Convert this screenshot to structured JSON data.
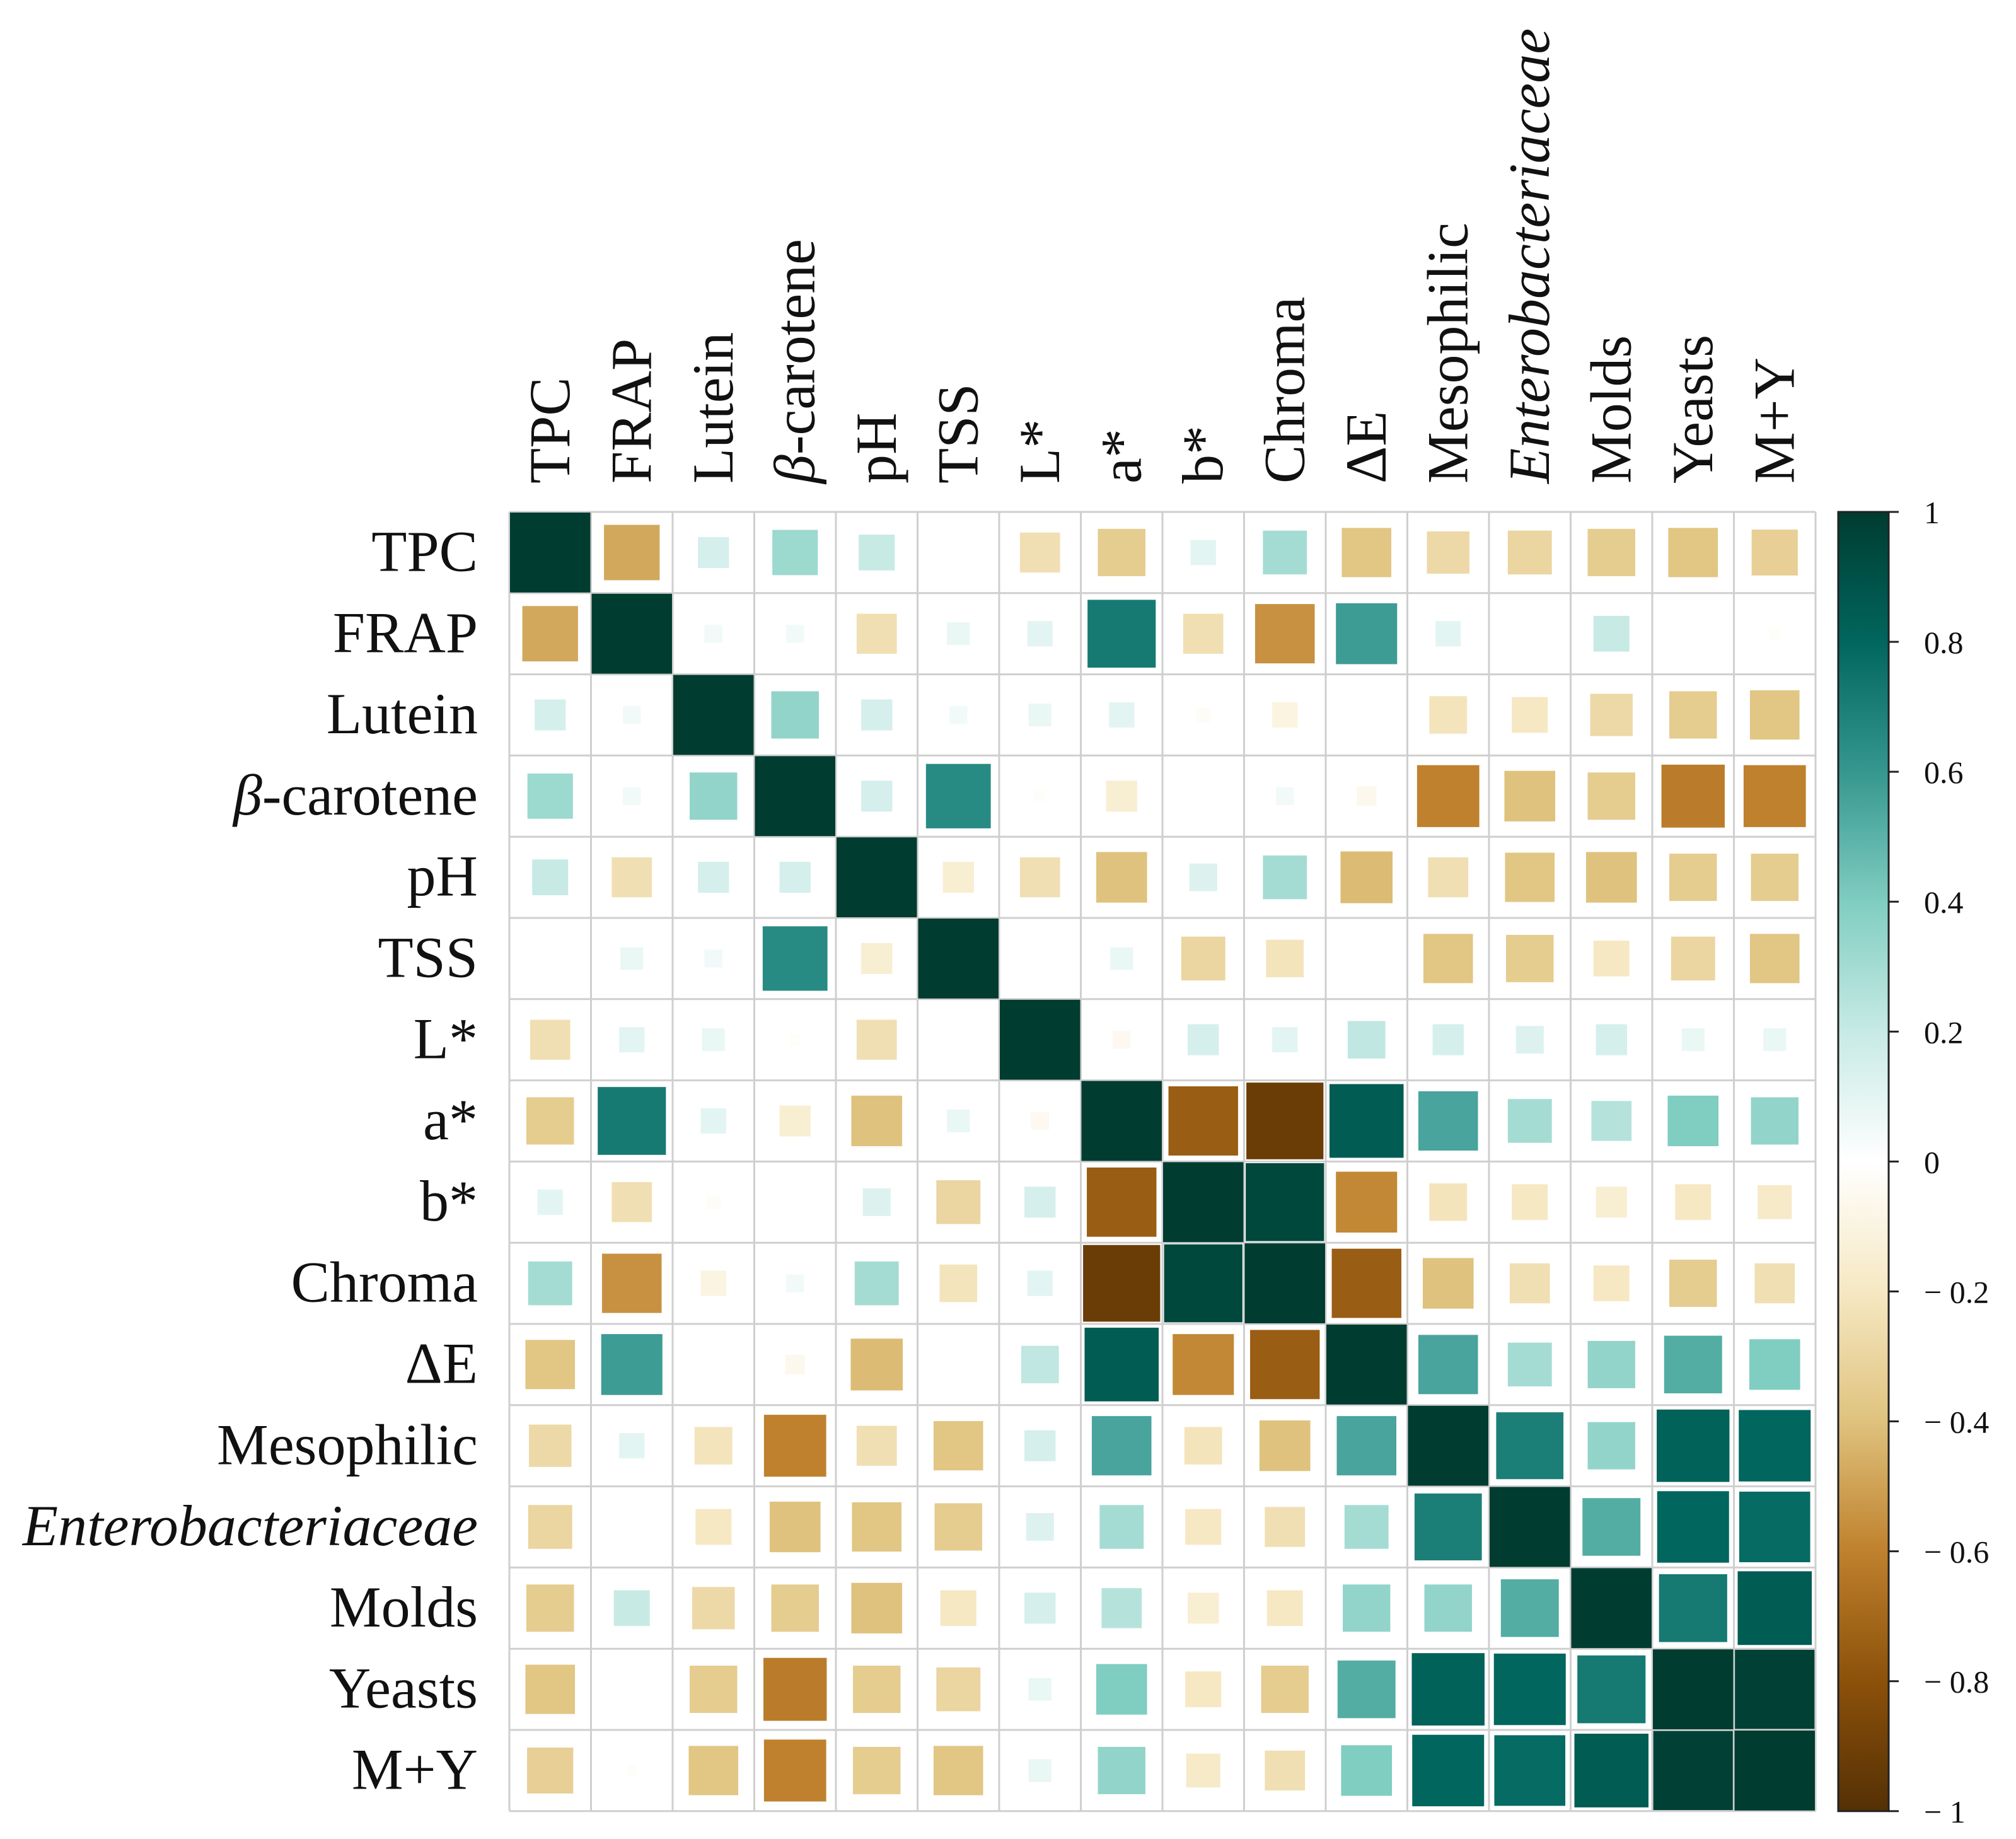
{
  "chart_data": {
    "type": "heatmap",
    "title": "",
    "xlabel": "",
    "ylabel": "",
    "variables": [
      "TPC",
      "FRAP",
      "Lutein",
      "β-carotene",
      "pH",
      "TSS",
      "L*",
      "a*",
      "b*",
      "Chroma",
      "ΔE",
      "Mesophilic",
      "Enterobacteriaceae",
      "Molds",
      "Yeasts",
      "M+Y"
    ],
    "italic_variables": [
      "β",
      "Enterobacteriaceae"
    ],
    "matrix": [
      [
        1.0,
        -0.48,
        0.15,
        0.32,
        0.2,
        0.0,
        -0.25,
        -0.35,
        0.1,
        0.3,
        -0.38,
        -0.28,
        -0.3,
        -0.35,
        -0.38,
        -0.33
      ],
      [
        -0.48,
        1.0,
        0.05,
        0.05,
        -0.25,
        0.08,
        0.1,
        0.72,
        -0.25,
        -0.55,
        0.58,
        0.1,
        0.0,
        0.2,
        0.0,
        -0.02
      ],
      [
        0.15,
        0.05,
        1.0,
        0.35,
        0.15,
        0.05,
        0.08,
        0.1,
        -0.03,
        -0.1,
        0.0,
        -0.22,
        -0.2,
        -0.28,
        -0.35,
        -0.38
      ],
      [
        0.32,
        0.05,
        0.35,
        1.0,
        0.15,
        0.65,
        -0.02,
        -0.15,
        0.0,
        0.05,
        -0.06,
        -0.6,
        -0.4,
        -0.35,
        -0.62,
        -0.6
      ],
      [
        0.2,
        -0.25,
        0.15,
        0.15,
        1.0,
        -0.15,
        -0.25,
        -0.4,
        0.12,
        0.3,
        -0.42,
        -0.25,
        -0.38,
        -0.4,
        -0.35,
        -0.35
      ],
      [
        0.0,
        0.08,
        0.05,
        0.65,
        -0.15,
        1.0,
        0.0,
        0.08,
        -0.3,
        -0.22,
        0.0,
        -0.38,
        -0.35,
        -0.2,
        -0.3,
        -0.38
      ],
      [
        -0.25,
        0.1,
        0.08,
        -0.02,
        -0.25,
        0.0,
        1.0,
        -0.05,
        0.15,
        0.1,
        0.22,
        0.15,
        0.12,
        0.15,
        0.08,
        0.08
      ],
      [
        -0.35,
        0.72,
        0.1,
        -0.15,
        -0.4,
        0.08,
        -0.05,
        1.0,
        -0.75,
        -0.92,
        0.85,
        0.55,
        0.3,
        0.25,
        0.4,
        0.35
      ],
      [
        0.1,
        -0.25,
        -0.03,
        0.0,
        0.12,
        -0.3,
        0.15,
        -0.75,
        1.0,
        0.95,
        -0.58,
        -0.22,
        -0.2,
        -0.15,
        -0.2,
        -0.18
      ],
      [
        0.3,
        -0.55,
        -0.1,
        0.05,
        0.3,
        -0.22,
        0.1,
        -0.92,
        0.95,
        1.0,
        -0.75,
        -0.4,
        -0.25,
        -0.2,
        -0.35,
        -0.25
      ],
      [
        -0.38,
        0.58,
        0.0,
        -0.06,
        -0.42,
        0.0,
        0.22,
        0.85,
        -0.58,
        -0.75,
        1.0,
        0.55,
        0.3,
        0.35,
        0.52,
        0.4
      ],
      [
        -0.28,
        0.1,
        -0.22,
        -0.6,
        -0.25,
        -0.38,
        0.15,
        0.55,
        -0.22,
        -0.4,
        0.55,
        1.0,
        0.7,
        0.35,
        0.82,
        0.8
      ],
      [
        -0.3,
        0.0,
        -0.2,
        -0.4,
        -0.38,
        -0.35,
        0.12,
        0.3,
        -0.2,
        -0.25,
        0.3,
        0.7,
        1.0,
        0.52,
        0.8,
        0.78
      ],
      [
        -0.35,
        0.2,
        -0.28,
        -0.35,
        -0.4,
        -0.2,
        0.15,
        0.25,
        -0.15,
        -0.2,
        0.35,
        0.35,
        0.52,
        1.0,
        0.72,
        0.85
      ],
      [
        -0.38,
        0.0,
        -0.35,
        -0.62,
        -0.35,
        -0.3,
        0.08,
        0.4,
        -0.2,
        -0.35,
        0.52,
        0.82,
        0.8,
        0.72,
        1.0,
        0.98
      ],
      [
        -0.33,
        -0.02,
        -0.38,
        -0.6,
        -0.35,
        -0.38,
        0.08,
        0.35,
        -0.18,
        -0.25,
        0.4,
        0.8,
        0.78,
        0.85,
        0.98,
        1.0
      ]
    ],
    "color_scale": {
      "range": [
        -1,
        1
      ],
      "stops": [
        {
          "value": -1.0,
          "color": "#543005"
        },
        {
          "value": -0.8,
          "color": "#8c510a"
        },
        {
          "value": -0.6,
          "color": "#bf812d"
        },
        {
          "value": -0.4,
          "color": "#dfc27d"
        },
        {
          "value": -0.2,
          "color": "#f6e8c3"
        },
        {
          "value": 0.0,
          "color": "#ffffff"
        },
        {
          "value": 0.2,
          "color": "#c7eae5"
        },
        {
          "value": 0.4,
          "color": "#80cdc1"
        },
        {
          "value": 0.6,
          "color": "#35978f"
        },
        {
          "value": 0.8,
          "color": "#01665e"
        },
        {
          "value": 1.0,
          "color": "#003c30"
        }
      ],
      "tick_labels": [
        "1",
        "0.8",
        "0.6",
        "0.4",
        "0.2",
        "0",
        "− 0.2",
        "− 0.4",
        "− 0.6",
        "− 0.8",
        "− 1"
      ]
    },
    "grid": true,
    "cell_size_encodes": "absolute correlation",
    "legend": "right"
  }
}
